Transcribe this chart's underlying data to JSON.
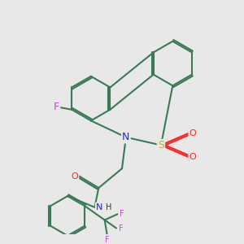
{
  "bg_color": "#e8e8e8",
  "bond_color": "#3a7a55",
  "bond_width": 1.5,
  "dbo": 0.07,
  "atom_colors": {
    "F": "#cc44cc",
    "N": "#2222ff",
    "S": "#bbbb00",
    "O": "#ff2222",
    "H": "#333333",
    "C": "#3a7a55"
  },
  "font_size": 8
}
